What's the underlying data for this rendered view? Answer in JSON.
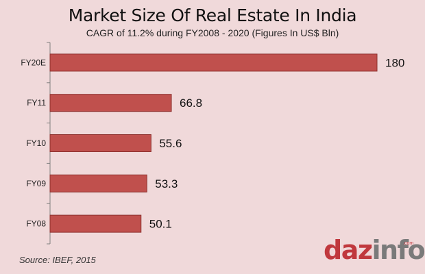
{
  "chart_data": {
    "type": "bar",
    "orientation": "horizontal",
    "title": "Market Size Of Real Estate In India",
    "subtitle": "CAGR of 11.2% during FY2008 - 2020 (Figures In US$ Bln)",
    "categories": [
      "FY20E",
      "FY11",
      "FY10",
      "FY09",
      "FY08"
    ],
    "values": [
      180,
      66.8,
      55.6,
      53.3,
      50.1
    ],
    "value_labels": [
      "180",
      "66.8",
      "55.6",
      "53.3",
      "50.1"
    ],
    "xlim": [
      0,
      180
    ],
    "grid": false,
    "bar_color": "#c0504d",
    "bar_border": "#8b2f2c"
  },
  "source": "Source: IBEF, 2015",
  "logo": {
    "part1": "daz",
    "part2": "info",
    "suffix": ".com"
  },
  "colors": {
    "background": "#f0d9da",
    "axis": "#7f7f7f"
  }
}
